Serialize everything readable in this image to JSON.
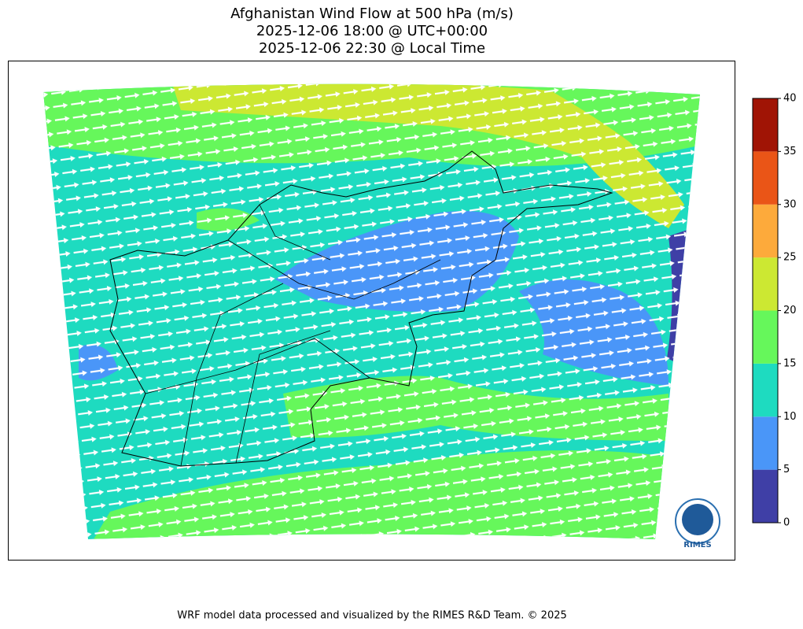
{
  "title": [
    "Afghanistan Wind Flow at 500 hPa (m/s)",
    "2025-12-06 18:00 @ UTC+00:00",
    "2025-12-06 22:30 @ Local Time"
  ],
  "colorbar": {
    "ticks": [
      0,
      5,
      10,
      15,
      20,
      25,
      30,
      35,
      40
    ],
    "colors": [
      "#3f3fa6",
      "#4a96f8",
      "#1edbc0",
      "#66f75b",
      "#cce832",
      "#fdaa3b",
      "#ea5517",
      "#a01405"
    ]
  },
  "logo": "RIMES",
  "footer": "WRF model data processed and visualized by the RIMES R&D Team. © 2025"
}
